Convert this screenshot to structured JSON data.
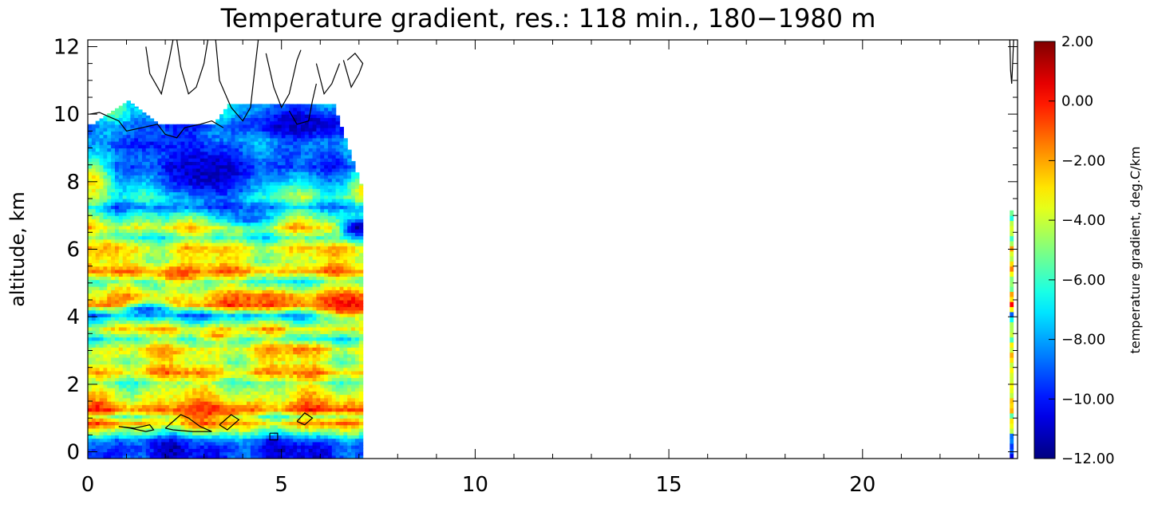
{
  "chart_data": {
    "type": "heatmap",
    "title": "Temperature gradient, res.: 118 min., 180−1980 m",
    "xlabel": "",
    "ylabel": "altitude, km",
    "xlim": [
      0,
      24
    ],
    "ylim": [
      -0.2,
      12.2
    ],
    "x_ticks": [
      0,
      5,
      10,
      15,
      20
    ],
    "x_tick_labels": [
      "0",
      "5",
      "10",
      "15",
      "20"
    ],
    "y_ticks": [
      0,
      2,
      4,
      6,
      8,
      10,
      12
    ],
    "y_tick_labels": [
      "0",
      "2",
      "4",
      "6",
      "8",
      "10",
      "12"
    ],
    "colorbar": {
      "label": "temperature gradient, deg.C/km",
      "range": [
        -12.0,
        2.0
      ],
      "ticks": [
        2.0,
        0.0,
        -2.0,
        -4.0,
        -6.0,
        -8.0,
        -10.0,
        -12.0
      ],
      "tick_labels": [
        "2.00",
        "0.00",
        "−2.00",
        "−4.00",
        "−6.00",
        "−8.00",
        "−10.00",
        "−12.00"
      ],
      "colormap": "jet"
    },
    "data_coverage": {
      "main_block_x": [
        0,
        7.1
      ],
      "main_block_top_km": [
        9.6,
        10.4
      ],
      "thin_strip_x": [
        23.8,
        23.9
      ],
      "thin_strip_top_km": 7.1
    },
    "altitude_profile": {
      "altitude_km": [
        0.1,
        0.3,
        0.5,
        0.8,
        1.0,
        1.2,
        1.5,
        1.8,
        2.0,
        2.3,
        2.6,
        3.0,
        3.3,
        3.6,
        4.0,
        4.3,
        4.6,
        5.0,
        5.3,
        5.6,
        6.0,
        6.3,
        6.6,
        7.0,
        7.2,
        7.5,
        8.0,
        8.4,
        8.8,
        9.2,
        9.6,
        10.0
      ],
      "gradient_degC_per_km": [
        -10,
        -9,
        -6,
        -2,
        -5,
        -1,
        -3,
        -4,
        -5,
        -2,
        -4,
        -3,
        -6,
        -3,
        -8,
        -1,
        -3,
        -6,
        -2,
        -4,
        -3,
        -6,
        -3,
        -6,
        -8,
        -5,
        -7,
        -9,
        -8,
        -7,
        -9,
        -7
      ]
    },
    "features": [
      {
        "x_center": 1.5,
        "y_center": 4.2,
        "value": -9,
        "sx": 0.5,
        "sy": 0.15
      },
      {
        "x_center": 2.3,
        "y_center": 5.2,
        "value": -1,
        "sx": 0.5,
        "sy": 0.2
      },
      {
        "x_center": 4.5,
        "y_center": 4.5,
        "value": -1,
        "sx": 0.8,
        "sy": 0.15
      },
      {
        "x_center": 6.7,
        "y_center": 4.3,
        "value": 0,
        "sx": 0.6,
        "sy": 0.3
      },
      {
        "x_center": 3.0,
        "y_center": 8.2,
        "value": -11,
        "sx": 1.1,
        "sy": 0.7
      },
      {
        "x_center": 5.5,
        "y_center": 9.7,
        "value": -11,
        "sx": 1.0,
        "sy": 0.4
      },
      {
        "x_center": 1.5,
        "y_center": 9.1,
        "value": -10,
        "sx": 1.0,
        "sy": 0.25
      },
      {
        "x_center": 6.9,
        "y_center": 6.6,
        "value": -11.5,
        "sx": 0.3,
        "sy": 0.2
      },
      {
        "x_center": 0.1,
        "y_center": 8.0,
        "value": -3,
        "sx": 0.3,
        "sy": 0.5
      },
      {
        "x_center": 7.0,
        "y_center": 7.7,
        "value": -3.5,
        "sx": 0.15,
        "sy": 0.3
      },
      {
        "x_center": 3.3,
        "y_center": 3.4,
        "value": -2,
        "sx": 0.4,
        "sy": 0.12
      },
      {
        "x_center": 5.5,
        "y_center": 3.0,
        "value": -1.5,
        "sx": 0.4,
        "sy": 0.12
      },
      {
        "x_center": 2.9,
        "y_center": 1.1,
        "value": -0.5,
        "sx": 0.7,
        "sy": 0.15
      },
      {
        "x_center": 0.5,
        "y_center": 6.0,
        "value": -2,
        "sx": 0.3,
        "sy": 0.2
      },
      {
        "x_center": 4.1,
        "y_center": 6.9,
        "value": -9,
        "sx": 0.4,
        "sy": 0.2
      }
    ]
  },
  "colors": {
    "axis": "#000000",
    "background": "#ffffff",
    "contour": "#000000"
  }
}
